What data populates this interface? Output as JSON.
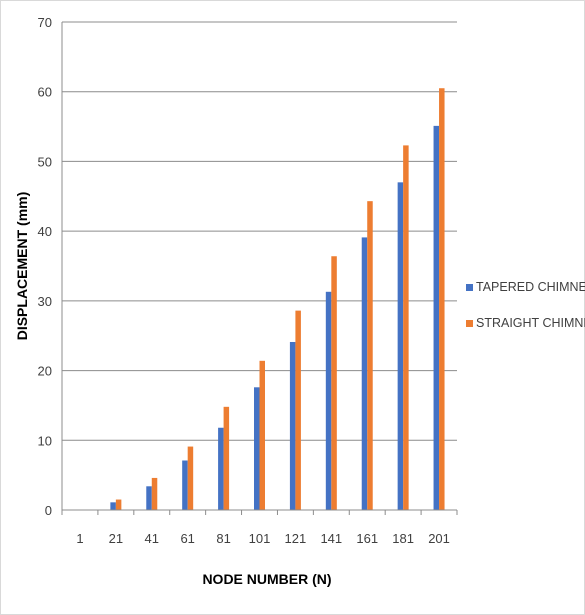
{
  "chart_data": {
    "type": "bar",
    "title": "",
    "xlabel": "NODE NUMBER (N)",
    "ylabel": "DISPLACEMENT (mm)",
    "categories": [
      "1",
      "21",
      "41",
      "61",
      "81",
      "101",
      "121",
      "141",
      "161",
      "181",
      "201"
    ],
    "ylim": [
      0,
      70
    ],
    "yticks": [
      0,
      10,
      20,
      30,
      40,
      50,
      60,
      70
    ],
    "grid": true,
    "legend_position": "right",
    "series": [
      {
        "name": "TAPERED CHIMNEY",
        "color": "#4472c4",
        "values": [
          0,
          1.1,
          3.4,
          7.1,
          11.8,
          17.6,
          24.1,
          31.3,
          39.1,
          47.0,
          55.1
        ]
      },
      {
        "name": "STRAIGHT CHIMNEY",
        "color": "#ed7d31",
        "values": [
          0,
          1.5,
          4.6,
          9.1,
          14.8,
          21.4,
          28.6,
          36.4,
          44.3,
          52.3,
          60.5
        ]
      }
    ]
  }
}
